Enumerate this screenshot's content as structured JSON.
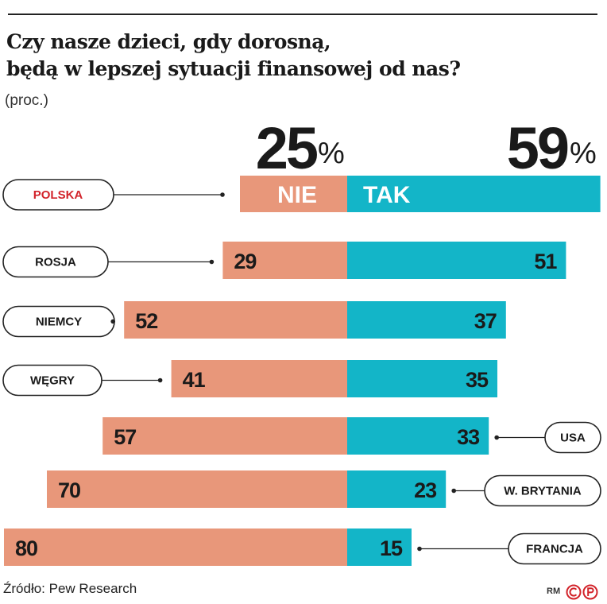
{
  "title_line1": "Czy nasze dzieci, gdy dorosną,",
  "title_line2": "będą w lepszej sytuacji finansowej od nas?",
  "unit": "(proc.)",
  "source": "Źródło: Pew Research",
  "author": "RM",
  "logo": "©P",
  "colors": {
    "nie": "#E8977A",
    "tak": "#13B5C8",
    "highlight_label": "#D2232A",
    "text": "#1a1a1a"
  },
  "chart_data": {
    "type": "bar",
    "orientation": "diverging-horizontal",
    "highlight": {
      "country": "POLSKA",
      "nie": 25,
      "tak": 59,
      "nie_label": "NIE",
      "tak_label": "TAK",
      "nie_display": "25",
      "tak_display": "59",
      "percent_sign": "%"
    },
    "categories": [
      "ROSJA",
      "NIEMCY",
      "WĘGRY",
      "USA",
      "W. BRYTANIA",
      "FRANCJA"
    ],
    "label_side": [
      "left",
      "left",
      "left",
      "right",
      "right",
      "right"
    ],
    "series": [
      {
        "name": "NIE",
        "values": [
          29,
          52,
          41,
          57,
          70,
          80
        ]
      },
      {
        "name": "TAK",
        "values": [
          51,
          37,
          35,
          33,
          23,
          15
        ]
      }
    ]
  }
}
